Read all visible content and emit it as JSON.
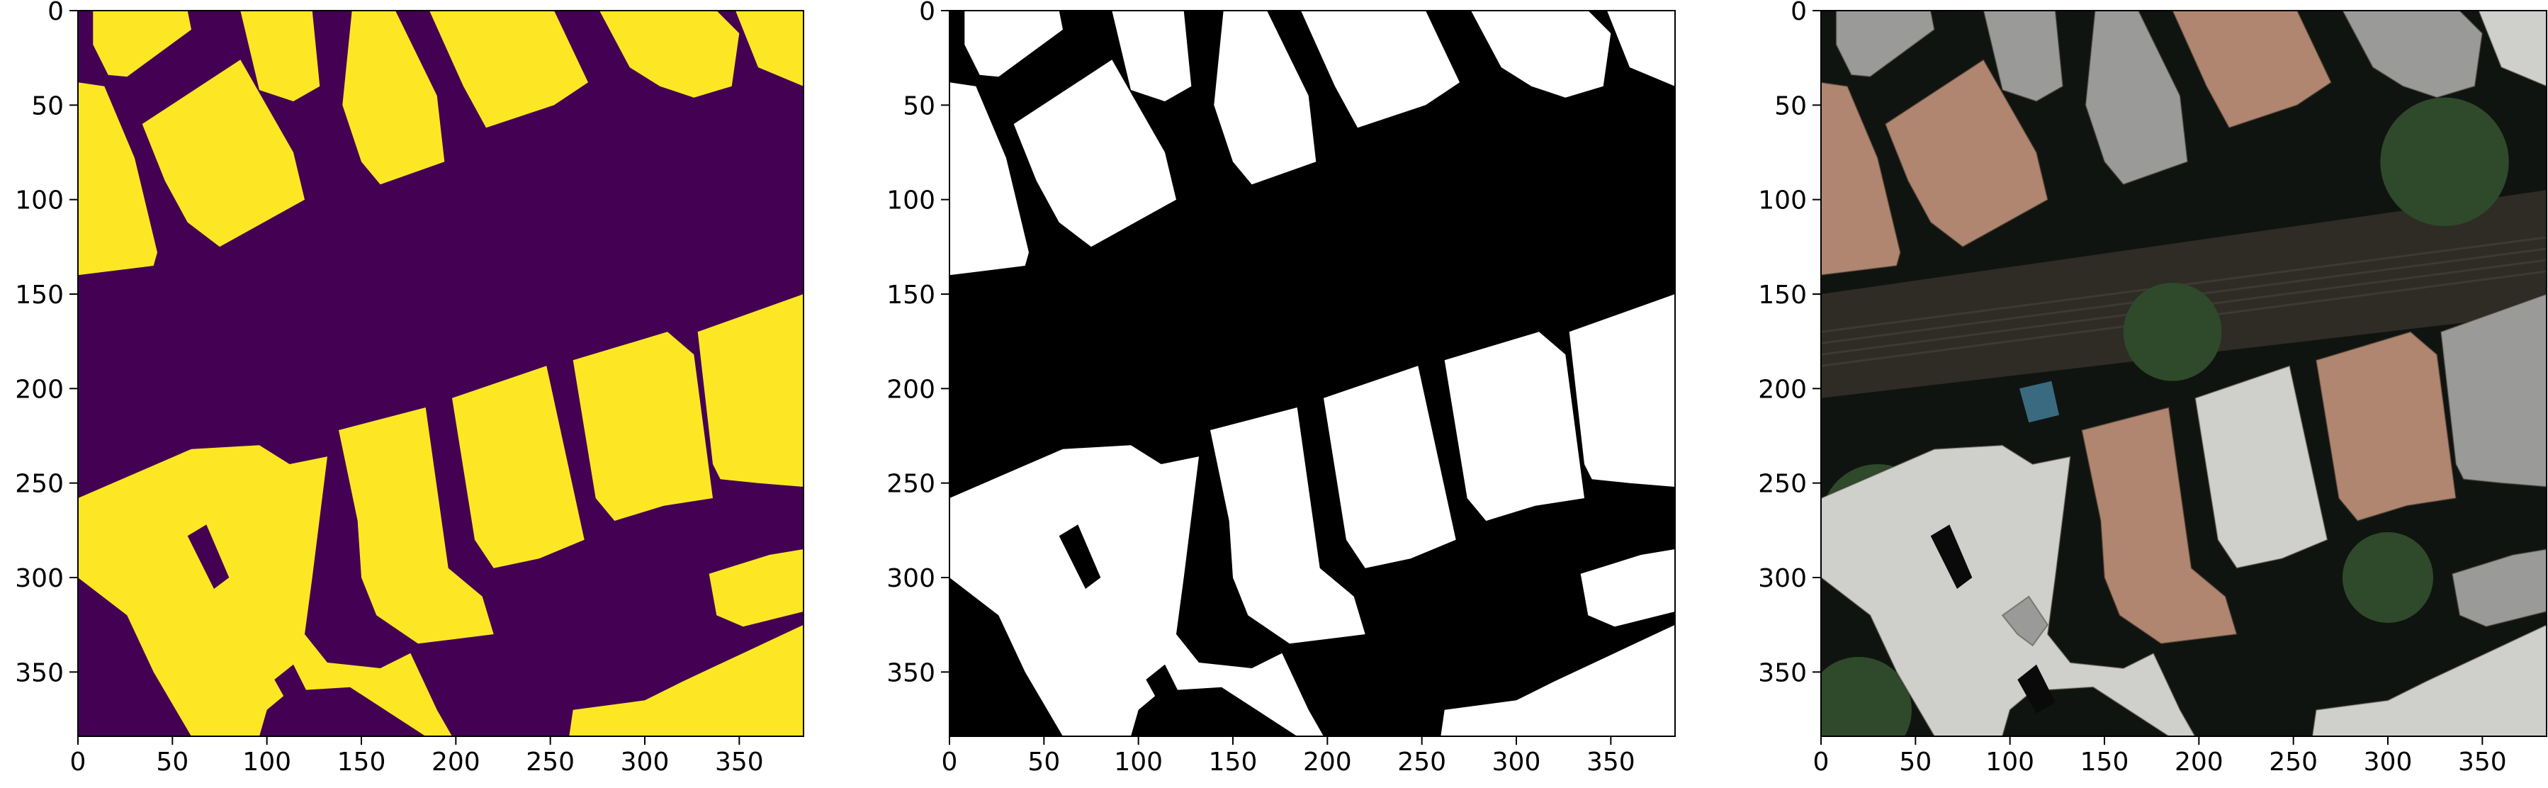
{
  "panels": [
    {
      "id": "mask-viridis",
      "kind": "mask",
      "colors": {
        "background": "#440154",
        "foreground": "#fde725"
      },
      "xticks": [
        "0",
        "50",
        "100",
        "150",
        "200",
        "250",
        "300",
        "350"
      ],
      "yticks": [
        "0",
        "50",
        "100",
        "150",
        "200",
        "250",
        "300",
        "350"
      ]
    },
    {
      "id": "mask-grayscale",
      "kind": "mask",
      "colors": {
        "background": "#000000",
        "foreground": "#ffffff"
      },
      "xticks": [
        "0",
        "50",
        "100",
        "150",
        "200",
        "250",
        "300",
        "350"
      ],
      "yticks": [
        "0",
        "50",
        "100",
        "150",
        "200",
        "250",
        "300",
        "350"
      ]
    },
    {
      "id": "masked-aerial-photo",
      "kind": "photo",
      "colors": {
        "background": "#101410",
        "road": "#2f2c25",
        "rail": "#3d3a30",
        "tree": "#2e4a2a",
        "roof_tile": "#b08670",
        "roof_gray": "#9a9a98",
        "roof_light": "#cfcfcc",
        "pool": "#3a6a80"
      },
      "xticks": [
        "0",
        "50",
        "100",
        "150",
        "200",
        "250",
        "300",
        "350"
      ],
      "yticks": [
        "0",
        "50",
        "100",
        "150",
        "200",
        "250",
        "300",
        "350"
      ]
    }
  ]
}
